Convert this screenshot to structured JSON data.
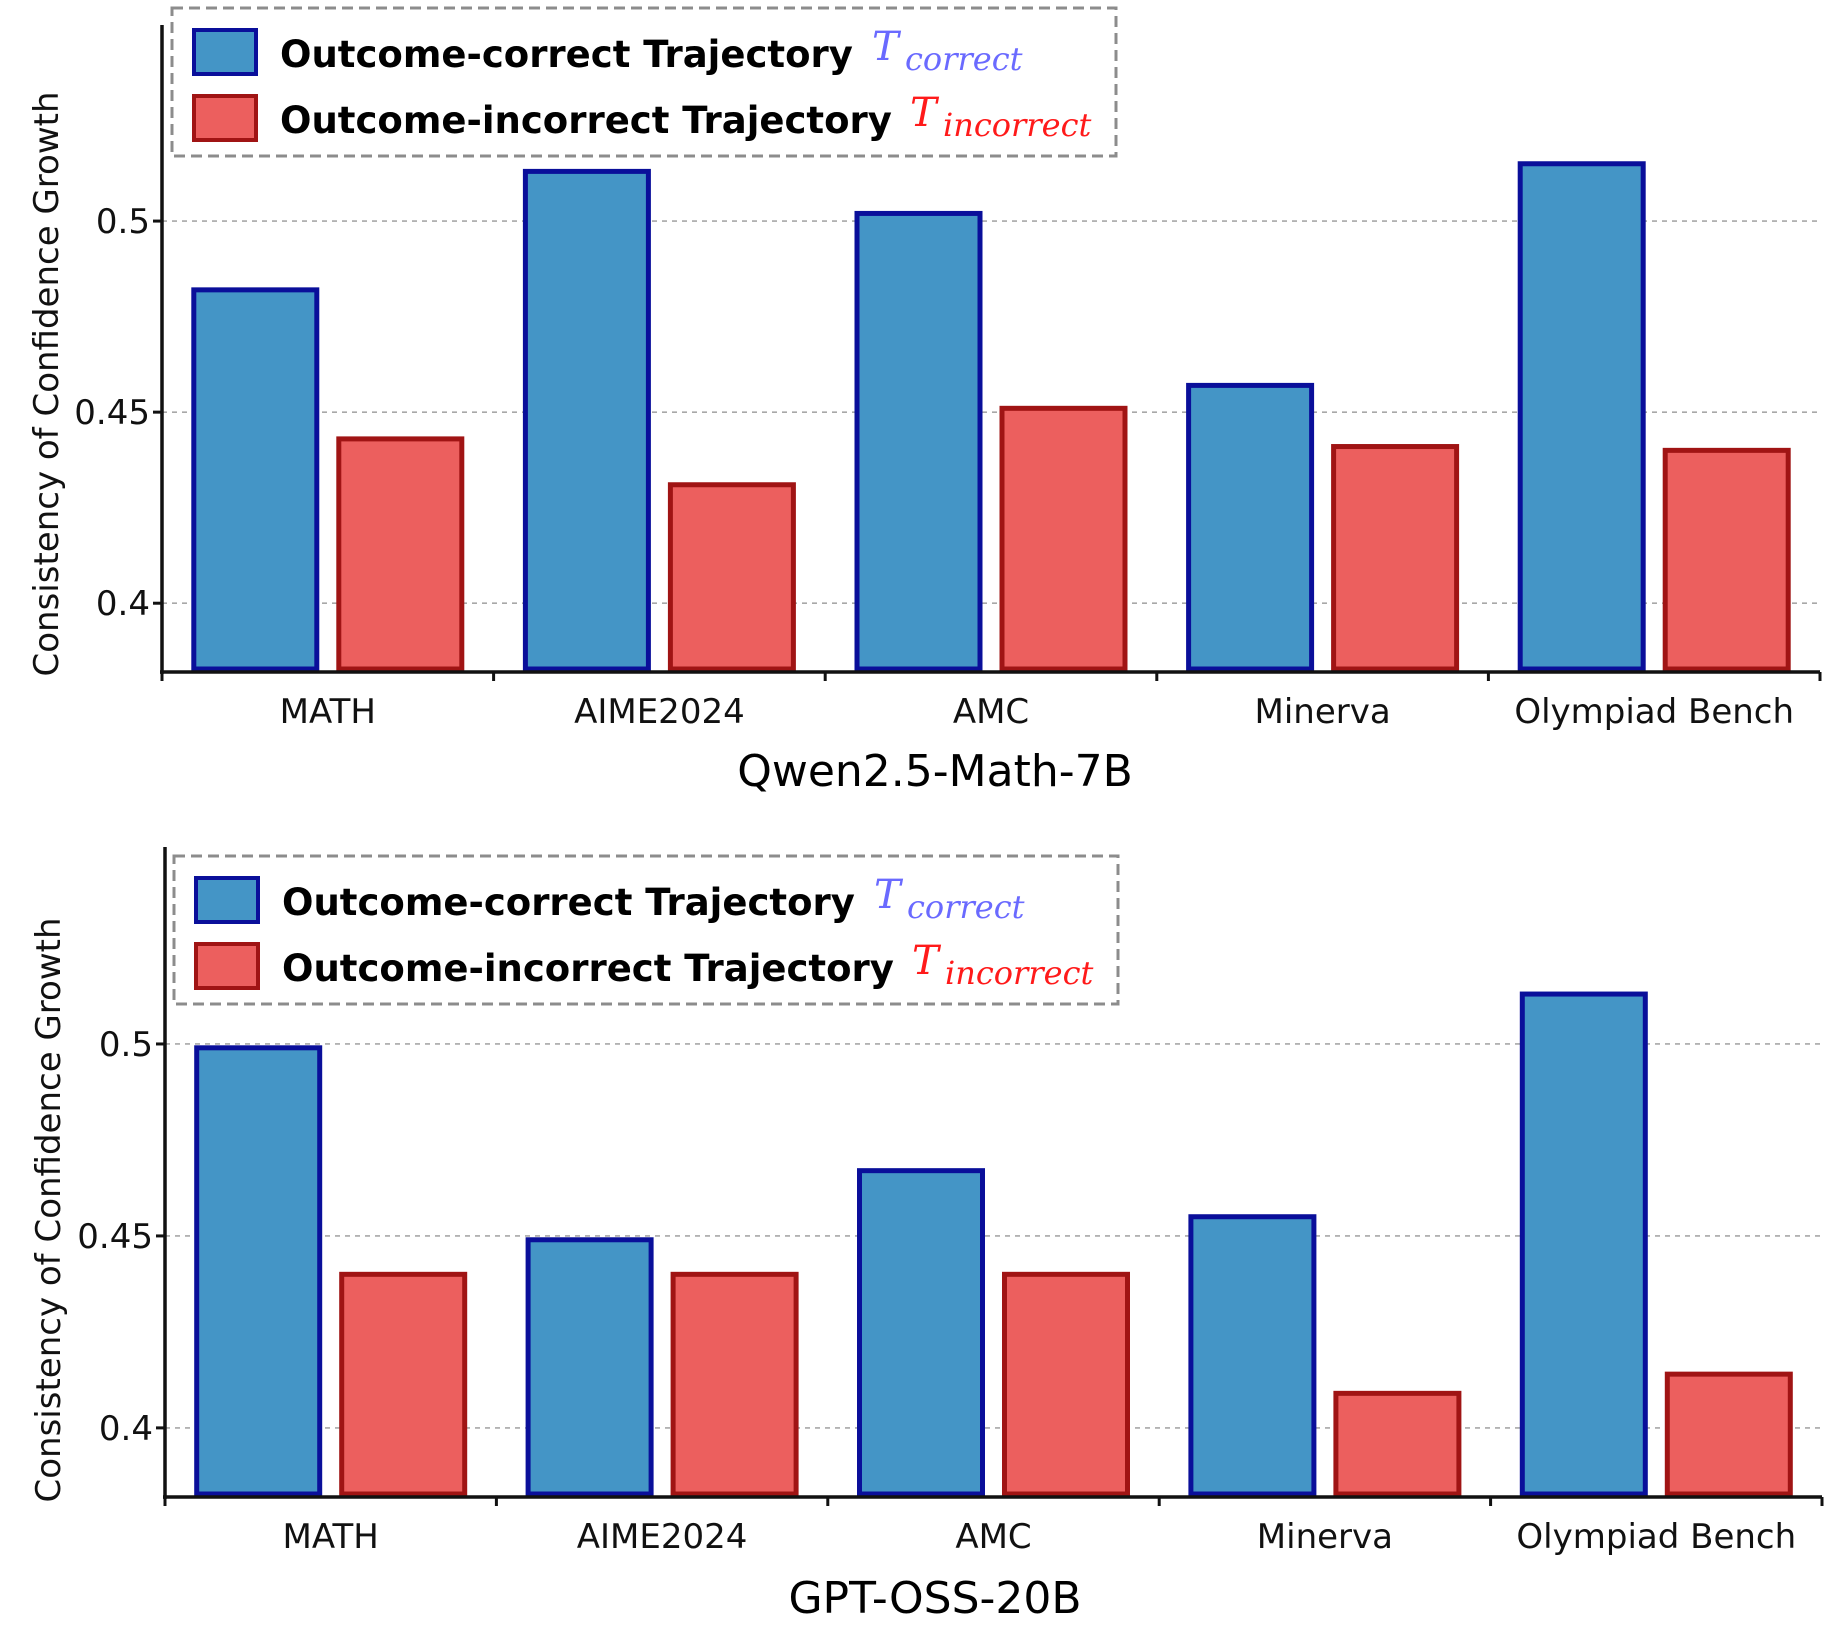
{
  "colors": {
    "correct_fill": "#4495c6",
    "correct_edge": "#0a0f9a",
    "incorrect_fill": "#ec5f5e",
    "incorrect_edge": "#a01414",
    "correct_symbol": "#6a6aff",
    "incorrect_symbol": "#ff1a1a",
    "grid": "#a8a8a8",
    "legend_border": "#8c8c8c"
  },
  "legend": {
    "correct_label": "Outcome-correct  Trajectory",
    "correct_symbol": "T",
    "correct_sub": "correct",
    "incorrect_label": "Outcome-incorrect  Trajectory",
    "incorrect_symbol": "T",
    "incorrect_sub": "incorrect"
  },
  "chart_data": [
    {
      "type": "bar",
      "title": "Qwen2.5-Math-7B",
      "xlabel": "Qwen2.5-Math-7B",
      "ylabel": "Consistency of Confidence Growth",
      "categories": [
        "MATH",
        "AIME2024",
        "AMC",
        "Minerva",
        "Olympiad Bench"
      ],
      "series": [
        {
          "name": "Outcome-correct Trajectory",
          "values": [
            0.482,
            0.513,
            0.502,
            0.457,
            0.515
          ]
        },
        {
          "name": "Outcome-incorrect Trajectory",
          "values": [
            0.443,
            0.431,
            0.451,
            0.441,
            0.44
          ]
        }
      ],
      "ylim": [
        0.382,
        0.55
      ],
      "yticks": [
        0.4,
        0.45,
        0.5
      ],
      "ytick_labels": [
        "0.4",
        "0.45",
        "0.5"
      ],
      "grid": true,
      "legend_position": "top-left"
    },
    {
      "type": "bar",
      "title": "GPT-OSS-20B",
      "xlabel": "GPT-OSS-20B",
      "ylabel": "Consistency of Confidence Growth",
      "categories": [
        "MATH",
        "AIME2024",
        "AMC",
        "Minerva",
        "Olympiad Bench"
      ],
      "series": [
        {
          "name": "Outcome-correct Trajectory",
          "values": [
            0.499,
            0.449,
            0.467,
            0.455,
            0.513
          ]
        },
        {
          "name": "Outcome-incorrect Trajectory",
          "values": [
            0.44,
            0.44,
            0.44,
            0.409,
            0.414
          ]
        }
      ],
      "ylim": [
        0.382,
        0.55
      ],
      "yticks": [
        0.4,
        0.45,
        0.5
      ],
      "ytick_labels": [
        "0.4",
        "0.45",
        "0.5"
      ],
      "grid": true,
      "legend_position": "top-left"
    }
  ]
}
